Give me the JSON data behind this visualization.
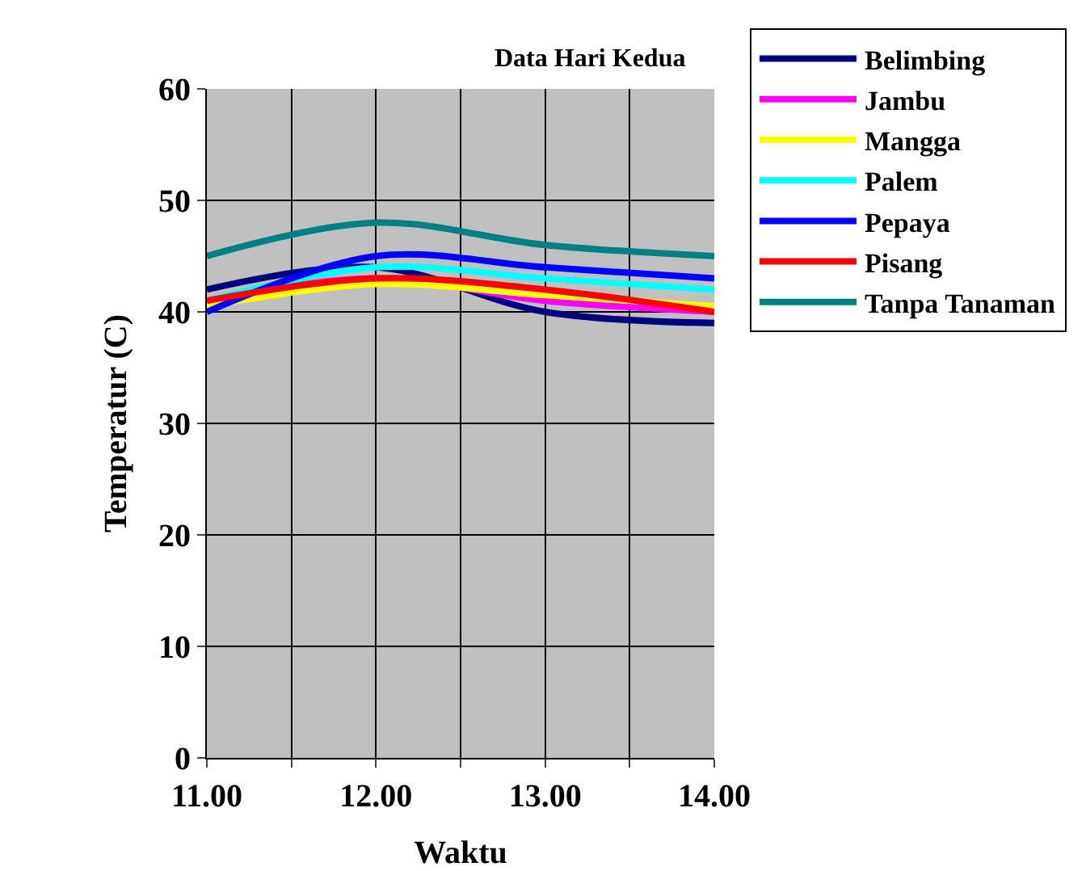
{
  "chart_data": {
    "type": "line",
    "title": "Data Hari Kedua",
    "xlabel": "Waktu",
    "ylabel": "Temperatur (C)",
    "x": [
      11,
      12,
      13,
      14
    ],
    "series": [
      {
        "name": "Belimbing",
        "color": "#000080",
        "values": [
          42,
          44,
          40,
          39
        ]
      },
      {
        "name": "Jambu",
        "color": "#ff00ff",
        "values": [
          41,
          43,
          41,
          40
        ]
      },
      {
        "name": "Mangga",
        "color": "#ffff00",
        "values": [
          40.5,
          42.5,
          41.5,
          40.5
        ]
      },
      {
        "name": "Palem",
        "color": "#00ffff",
        "values": [
          41,
          44,
          43,
          42
        ]
      },
      {
        "name": "Pepaya",
        "color": "#0000ff",
        "values": [
          40,
          45,
          44,
          43
        ]
      },
      {
        "name": "Pisang",
        "color": "#ff0000",
        "values": [
          41,
          43,
          42,
          40
        ]
      },
      {
        "name": "Tanpa Tanaman",
        "color": "#008080",
        "values": [
          45,
          48,
          46,
          45
        ]
      }
    ],
    "xlim": [
      11,
      14
    ],
    "xticks": [
      {
        "value": 11,
        "label": "11.00"
      },
      {
        "value": 11.5,
        "label": null
      },
      {
        "value": 12,
        "label": "12.00"
      },
      {
        "value": 12.5,
        "label": null
      },
      {
        "value": 13,
        "label": "13.00"
      },
      {
        "value": 13.5,
        "label": null
      },
      {
        "value": 14,
        "label": "14.00"
      }
    ],
    "ylim": [
      0,
      60
    ],
    "yticks": [
      0,
      10,
      20,
      30,
      40,
      50,
      60
    ],
    "grid": true,
    "legend": "right",
    "marker": "none",
    "line_style": "solid"
  }
}
